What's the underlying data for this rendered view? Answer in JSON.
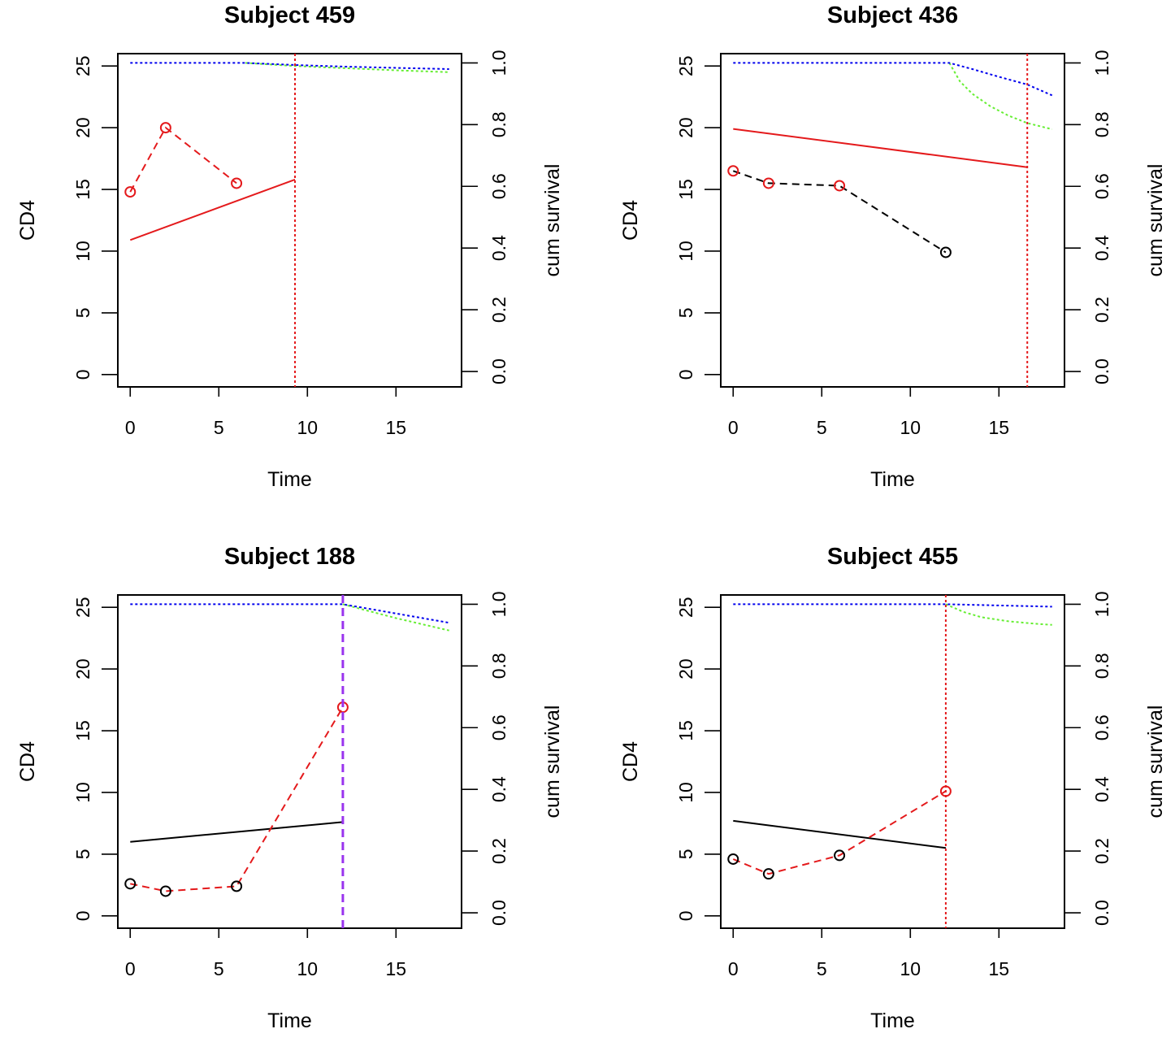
{
  "colors": {
    "red": "#e41a1c",
    "black": "#000000",
    "blue": "#0000ee",
    "green": "#66ee33",
    "purple": "#9933ee",
    "axis": "#000000"
  },
  "chart_data": [
    {
      "type": "line",
      "title": "Subject 459",
      "xlabel": "Time",
      "ylabel": "CD4",
      "ylabel_right": "cum survival",
      "xlim": [
        -0.7,
        18.7
      ],
      "ylim": [
        -1.0,
        26.0
      ],
      "ylim_right": [
        -0.05,
        1.03
      ],
      "x_ticks": [
        0,
        5,
        10,
        15
      ],
      "y_ticks": [
        0,
        5,
        10,
        15,
        20,
        25
      ],
      "y_ticks_right": [
        0.0,
        0.2,
        0.4,
        0.6,
        0.8,
        1.0
      ],
      "x_tick_labels": [
        "0",
        "5",
        "10",
        "15"
      ],
      "y_tick_labels": [
        "0",
        "5",
        "10",
        "15",
        "20",
        "25"
      ],
      "y_tick_labels_right": [
        "0.0",
        "0.2",
        "0.4",
        "0.6",
        "0.8",
        "1.0"
      ],
      "observed": {
        "x": [
          0,
          2,
          6
        ],
        "y": [
          14.8,
          20.0,
          15.5
        ],
        "color": "red",
        "point_colors": [
          "red",
          "red",
          "red"
        ]
      },
      "fitted": {
        "x": [
          0,
          9.3
        ],
        "y": [
          10.9,
          15.8
        ],
        "color": "red"
      },
      "event_line": {
        "x": 9.3,
        "color": "red",
        "style": "dotted"
      },
      "survival_blue": {
        "x": [
          0,
          6.5,
          9.3,
          12,
          15,
          18
        ],
        "y": [
          1.0,
          1.0,
          0.993,
          0.988,
          0.984,
          0.98
        ]
      },
      "survival_green": {
        "x": [
          6.5,
          9.3,
          12,
          15,
          18
        ],
        "y": [
          1.0,
          0.99,
          0.983,
          0.976,
          0.97
        ]
      }
    },
    {
      "type": "line",
      "title": "Subject 436",
      "xlabel": "Time",
      "ylabel": "CD4",
      "ylabel_right": "cum survival",
      "xlim": [
        -0.7,
        18.7
      ],
      "ylim": [
        -1.0,
        26.0
      ],
      "ylim_right": [
        -0.05,
        1.03
      ],
      "x_ticks": [
        0,
        5,
        10,
        15
      ],
      "y_ticks": [
        0,
        5,
        10,
        15,
        20,
        25
      ],
      "y_ticks_right": [
        0.0,
        0.2,
        0.4,
        0.6,
        0.8,
        1.0
      ],
      "x_tick_labels": [
        "0",
        "5",
        "10",
        "15"
      ],
      "y_tick_labels": [
        "0",
        "5",
        "10",
        "15",
        "20",
        "25"
      ],
      "y_tick_labels_right": [
        "0.0",
        "0.2",
        "0.4",
        "0.6",
        "0.8",
        "1.0"
      ],
      "observed": {
        "x": [
          0,
          2,
          6,
          12
        ],
        "y": [
          16.5,
          15.5,
          15.3,
          9.9
        ],
        "color": "black",
        "point_colors": [
          "red",
          "red",
          "red",
          "black"
        ]
      },
      "fitted": {
        "x": [
          0,
          16.6
        ],
        "y": [
          19.9,
          16.8
        ],
        "color": "red"
      },
      "event_line": {
        "x": 16.6,
        "color": "red",
        "style": "dotted"
      },
      "survival_blue": {
        "x": [
          0,
          12.2,
          13.5,
          15,
          16.6,
          18
        ],
        "y": [
          1.0,
          1.0,
          0.98,
          0.955,
          0.93,
          0.895
        ]
      },
      "survival_green": {
        "x": [
          12.2,
          12.8,
          13.5,
          14.5,
          15.5,
          16.6,
          18
        ],
        "y": [
          1.0,
          0.94,
          0.9,
          0.86,
          0.83,
          0.805,
          0.785
        ]
      }
    },
    {
      "type": "line",
      "title": "Subject 188",
      "xlabel": "Time",
      "ylabel": "CD4",
      "ylabel_right": "cum survival",
      "xlim": [
        -0.7,
        18.7
      ],
      "ylim": [
        -1.0,
        26.0
      ],
      "ylim_right": [
        -0.05,
        1.03
      ],
      "x_ticks": [
        0,
        5,
        10,
        15
      ],
      "y_ticks": [
        0,
        5,
        10,
        15,
        20,
        25
      ],
      "y_ticks_right": [
        0.0,
        0.2,
        0.4,
        0.6,
        0.8,
        1.0
      ],
      "x_tick_labels": [
        "0",
        "5",
        "10",
        "15"
      ],
      "y_tick_labels": [
        "0",
        "5",
        "10",
        "15",
        "20",
        "25"
      ],
      "y_tick_labels_right": [
        "0.0",
        "0.2",
        "0.4",
        "0.6",
        "0.8",
        "1.0"
      ],
      "observed": {
        "x": [
          0,
          2,
          6,
          12
        ],
        "y": [
          2.6,
          2.0,
          2.4,
          16.9
        ],
        "color": "red",
        "point_colors": [
          "black",
          "black",
          "black",
          "red"
        ]
      },
      "fitted": {
        "x": [
          0,
          12
        ],
        "y": [
          6.0,
          7.6
        ],
        "color": "black"
      },
      "event_line": {
        "x": 12,
        "color": "purple",
        "style": "dashed"
      },
      "survival_blue": {
        "x": [
          0,
          12,
          15,
          18
        ],
        "y": [
          1.0,
          1.0,
          0.97,
          0.94
        ]
      },
      "survival_green": {
        "x": [
          12,
          15,
          18
        ],
        "y": [
          1.0,
          0.955,
          0.915
        ]
      }
    },
    {
      "type": "line",
      "title": "Subject 455",
      "xlabel": "Time",
      "ylabel": "CD4",
      "ylabel_right": "cum survival",
      "xlim": [
        -0.7,
        18.7
      ],
      "ylim": [
        -1.0,
        26.0
      ],
      "ylim_right": [
        -0.05,
        1.03
      ],
      "x_ticks": [
        0,
        5,
        10,
        15
      ],
      "y_ticks": [
        0,
        5,
        10,
        15,
        20,
        25
      ],
      "y_ticks_right": [
        0.0,
        0.2,
        0.4,
        0.6,
        0.8,
        1.0
      ],
      "x_tick_labels": [
        "0",
        "5",
        "10",
        "15"
      ],
      "y_tick_labels": [
        "0",
        "5",
        "10",
        "15",
        "20",
        "25"
      ],
      "y_tick_labels_right": [
        "0.0",
        "0.2",
        "0.4",
        "0.6",
        "0.8",
        "1.0"
      ],
      "observed": {
        "x": [
          0,
          2,
          6,
          12
        ],
        "y": [
          4.6,
          3.4,
          4.9,
          10.1
        ],
        "color": "red",
        "point_colors": [
          "black",
          "black",
          "black",
          "red"
        ]
      },
      "fitted": {
        "x": [
          0,
          12
        ],
        "y": [
          7.7,
          5.5
        ],
        "color": "black"
      },
      "event_line": {
        "x": 12,
        "color": "red",
        "style": "dotted"
      },
      "survival_blue": {
        "x": [
          0,
          12,
          15,
          18
        ],
        "y": [
          1.0,
          1.0,
          0.996,
          0.992
        ]
      },
      "survival_green": {
        "x": [
          12,
          13,
          14,
          15.5,
          17,
          18
        ],
        "y": [
          1.0,
          0.975,
          0.958,
          0.945,
          0.937,
          0.933
        ]
      }
    }
  ]
}
